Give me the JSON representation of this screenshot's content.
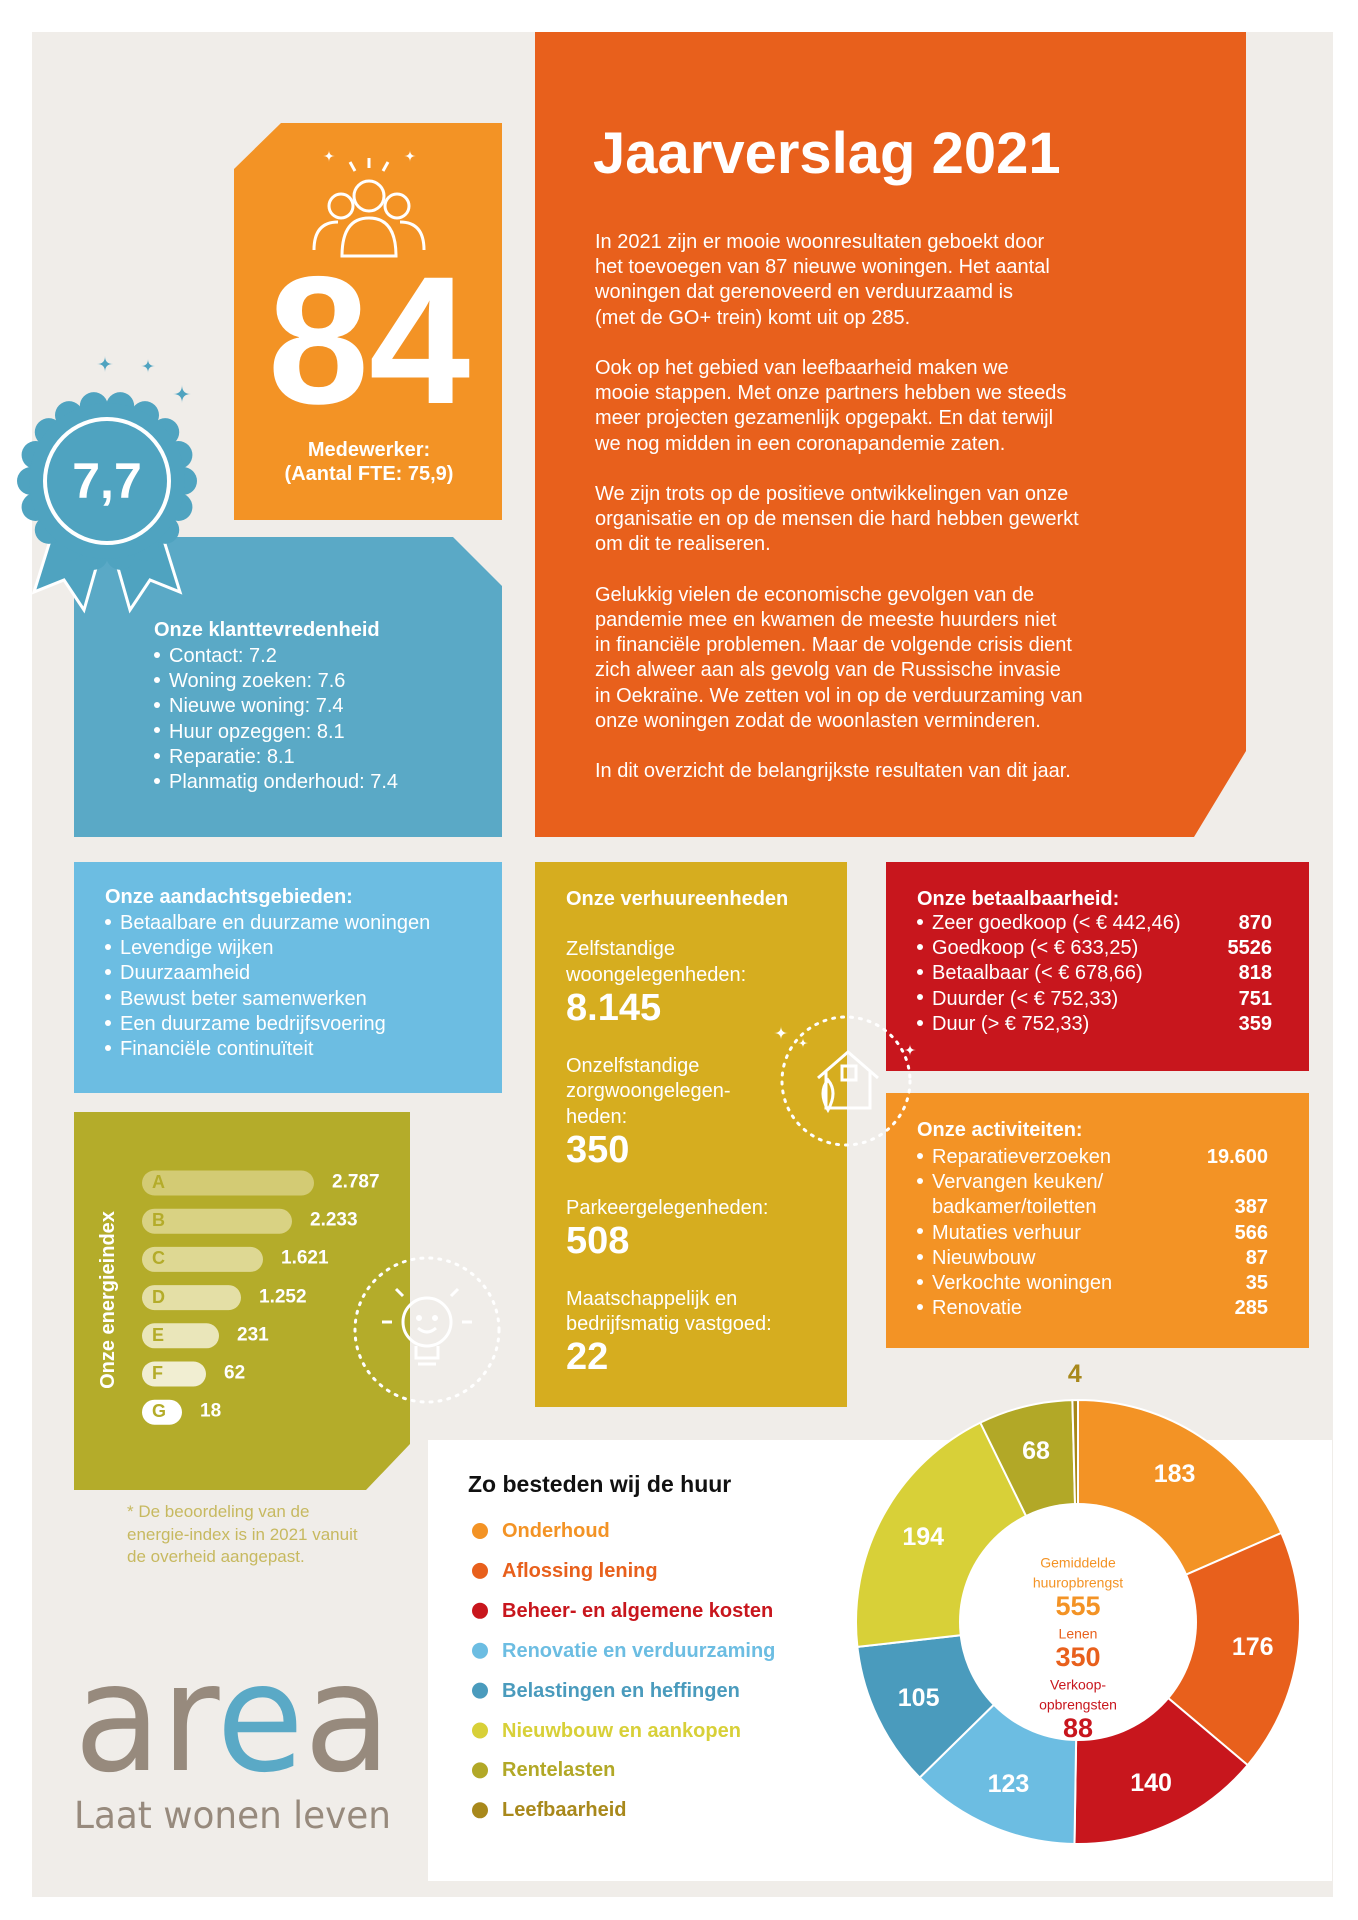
{
  "header": {
    "title": "Jaarverslag 2021",
    "paragraphs": [
      [
        "In 2021 zijn er mooie woonresultaten geboekt door",
        "het toevoegen van 87 nieuwe woningen. Het aantal",
        "woningen dat gerenoveerd en verduurzaamd is",
        "(met de GO+ trein) komt uit op 285."
      ],
      [
        "Ook op het gebied van leefbaarheid maken we",
        "mooie stappen. Met onze partners hebben we steeds",
        "meer projecten gezamenlijk opgepakt. En dat terwijl",
        "we nog midden in een coronapandemie zaten."
      ],
      [
        "We zijn trots op de positieve ontwikkelingen van onze",
        "organisatie en op de mensen die hard hebben gewerkt",
        "om dit te realiseren."
      ],
      [
        "Gelukkig vielen de economische gevolgen van de",
        "pandemie mee en kwamen de meeste huurders niet",
        "in financiële problemen. Maar de volgende crisis dient",
        "zich alweer aan als gevolg van de Russische invasie",
        "in Oekraïne. We zetten vol in op de verduurzaming van",
        "onze woningen zodat de woonlasten verminderen."
      ],
      [
        "In dit overzicht de belangrijkste resultaten van dit jaar."
      ]
    ]
  },
  "staff": {
    "number": "84",
    "label": "Medewerker:",
    "sublabel": "(Aantal FTE: 75,9)"
  },
  "rating": {
    "score": "7,7"
  },
  "satisfaction": {
    "title": "Onze klanttevredenheid",
    "items": [
      "Contact: 7.2",
      "Woning zoeken: 7.6",
      "Nieuwe woning: 7.4",
      "Huur opzeggen: 8.1",
      "Reparatie: 8.1",
      "Planmatig onderhoud: 7.4"
    ]
  },
  "focus": {
    "title": "Onze aandachtsgebieden:",
    "items": [
      "Betaalbare en duurzame woningen",
      "Levendige wijken",
      "Duurzaamheid",
      "Bewust beter samenwerken",
      "Een duurzame bedrijfsvoering",
      "Financiële continuïteit"
    ]
  },
  "energy": {
    "title": "Onze energieindex",
    "rows": [
      {
        "label": "A",
        "value": "2.787"
      },
      {
        "label": "B",
        "value": "2.233"
      },
      {
        "label": "C",
        "value": "1.621"
      },
      {
        "label": "D",
        "value": "1.252"
      },
      {
        "label": "E",
        "value": "231"
      },
      {
        "label": "F",
        "value": "62"
      },
      {
        "label": "G",
        "value": "18"
      }
    ],
    "note": [
      "* De beoordeling van de",
      "energie-index is in 2021 vanuit",
      "de overheid aangepast."
    ]
  },
  "units": {
    "title": "Onze verhuureenheden",
    "items": [
      {
        "label": [
          "Zelfstandige",
          "woongelegenheden:"
        ],
        "value": "8.145"
      },
      {
        "label": [
          "Onzelfstandige",
          "zorgwoongelegen-",
          "heden:"
        ],
        "value": "350"
      },
      {
        "label": [
          "Parkeergelegenheden:"
        ],
        "value": "508"
      },
      {
        "label": [
          "Maatschappelijk en",
          "bedrijfsmatig vastgoed:"
        ],
        "value": "22"
      }
    ]
  },
  "affordability": {
    "title": "Onze betaalbaarheid:",
    "rows": [
      {
        "label": "Zeer goedkoop (< € 442,46)",
        "value": "870"
      },
      {
        "label": "Goedkoop (< € 633,25)",
        "value": "5526"
      },
      {
        "label": "Betaalbaar (< € 678,66)",
        "value": "818"
      },
      {
        "label": "Duurder (< € 752,33)",
        "value": "751"
      },
      {
        "label": "Duur (> € 752,33)",
        "value": "359"
      }
    ]
  },
  "activities": {
    "title": "Onze activiteiten:",
    "rows": [
      {
        "label": [
          "Reparatieverzoeken"
        ],
        "value": "19.600"
      },
      {
        "label": [
          "Vervangen keuken/",
          "badkamer/toiletten"
        ],
        "value": "387"
      },
      {
        "label": [
          "Mutaties verhuur"
        ],
        "value": "566"
      },
      {
        "label": [
          "Nieuwbouw"
        ],
        "value": "87"
      },
      {
        "label": [
          "Verkochte woningen"
        ],
        "value": "35"
      },
      {
        "label": [
          "Renovatie"
        ],
        "value": "285"
      }
    ]
  },
  "chart_data": {
    "type": "pie",
    "title": "Zo besteden wij de huur",
    "categories": [
      "Onderhoud",
      "Aflossing lening",
      "Beheer- en algemene kosten",
      "Renovatie en verduurzaming",
      "Belastingen en heffingen",
      "Nieuwbouw en aankopen",
      "Rentelasten",
      "Leefbaarheid"
    ],
    "values": [
      183,
      176,
      140,
      123,
      105,
      194,
      68,
      4
    ],
    "colors": [
      "#f39325",
      "#e8601c",
      "#c8161d",
      "#6cbde2",
      "#4a9bbd",
      "#d8d038",
      "#b2a827",
      "#a8881b"
    ]
  },
  "rent_summary": [
    {
      "label": [
        "Gemiddelde",
        "huuropbrengst"
      ],
      "value": "555",
      "color": "#f39325"
    },
    {
      "label": [
        "Lenen"
      ],
      "value": "350",
      "color": "#e8601c"
    },
    {
      "label": [
        "Verkoop-",
        "opbrengsten"
      ],
      "value": "88",
      "color": "#c8161d"
    }
  ],
  "logo": {
    "name": "area",
    "tagline": "Laat wonen leven"
  }
}
